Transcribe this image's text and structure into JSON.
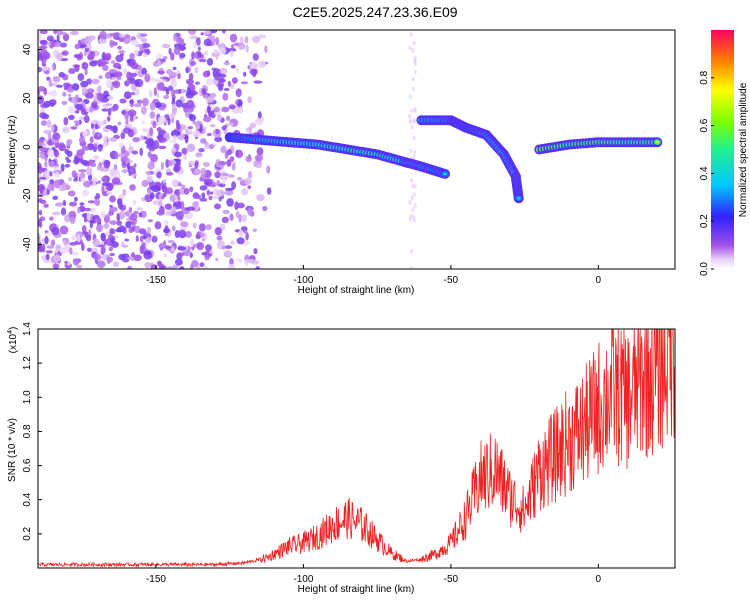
{
  "title": "C2E5.2025.247.23.36.E09",
  "chart_data": [
    {
      "type": "heatmap",
      "xlabel": "Height of straight line (km)",
      "ylabel": "Frequency (Hz)",
      "xlim": [
        -190,
        26
      ],
      "ylim": [
        -50,
        48
      ],
      "xticks": [
        -150,
        -100,
        -50,
        0
      ],
      "yticks": [
        -40,
        -20,
        0,
        20,
        40
      ],
      "colorbar": {
        "label": "Normalized spectral amplitude",
        "range": [
          0,
          1
        ],
        "ticks": [
          0.0,
          0.2,
          0.4,
          0.6,
          0.8
        ],
        "colormap": "rainbow (violet to red, white at zero)"
      },
      "noise_region_x": [
        -190,
        -110
      ],
      "signal_track": [
        {
          "x": -125,
          "y": 4,
          "amp": 0.35
        },
        {
          "x": -115,
          "y": 3,
          "amp": 0.45
        },
        {
          "x": -105,
          "y": 2,
          "amp": 0.5
        },
        {
          "x": -95,
          "y": 1,
          "amp": 0.55
        },
        {
          "x": -85,
          "y": -1,
          "amp": 0.6
        },
        {
          "x": -75,
          "y": -3,
          "amp": 0.6
        },
        {
          "x": -66,
          "y": -6,
          "amp": 0.55
        },
        {
          "x": -60,
          "y": -8,
          "amp": 0.45
        },
        {
          "x": -52,
          "y": -11,
          "amp": 0.4
        },
        {
          "x": -60,
          "y": 11,
          "amp": 0.45
        },
        {
          "x": -50,
          "y": 11,
          "amp": 0.4
        },
        {
          "x": -45,
          "y": 8,
          "amp": 0.35
        },
        {
          "x": -38,
          "y": 5,
          "amp": 0.45
        },
        {
          "x": -32,
          "y": -3,
          "amp": 0.5
        },
        {
          "x": -28,
          "y": -12,
          "amp": 0.55
        },
        {
          "x": -27,
          "y": -21,
          "amp": 0.4
        },
        {
          "x": -20,
          "y": -1,
          "amp": 0.8
        },
        {
          "x": -10,
          "y": 1,
          "amp": 0.7
        },
        {
          "x": 0,
          "y": 2,
          "amp": 0.75
        },
        {
          "x": 10,
          "y": 2,
          "amp": 0.65
        },
        {
          "x": 20,
          "y": 2,
          "amp": 0.7
        }
      ]
    },
    {
      "type": "line",
      "xlabel": "Height of straight line (km)",
      "ylabel": "SNR (10 * v/v)",
      "yscale_label": "(x10",
      "yscale_exp": "4",
      "yscale_close": ")",
      "xlim": [
        -190,
        26
      ],
      "ylim": [
        0,
        1.4
      ],
      "xticks": [
        -150,
        -100,
        -50,
        0
      ],
      "yticks": [
        0.2,
        0.4,
        0.6,
        0.8,
        1.0,
        1.2,
        1.4
      ],
      "series": [
        {
          "color": "#ee2222",
          "x": [
            -190,
            -170,
            -150,
            -130,
            -120,
            -112,
            -105,
            -100,
            -95,
            -90,
            -85,
            -80,
            -75,
            -70,
            -65,
            -60,
            -55,
            -50,
            -45,
            -40,
            -35,
            -30,
            -25,
            -20,
            -15,
            -10,
            -5,
            0,
            5,
            10,
            15,
            20,
            26
          ],
          "y": [
            0.02,
            0.02,
            0.02,
            0.02,
            0.03,
            0.06,
            0.12,
            0.14,
            0.18,
            0.24,
            0.28,
            0.24,
            0.16,
            0.08,
            0.04,
            0.05,
            0.08,
            0.14,
            0.28,
            0.5,
            0.55,
            0.4,
            0.32,
            0.55,
            0.62,
            0.72,
            0.78,
            0.9,
            1.0,
            0.95,
            1.05,
            1.1,
            1.25
          ]
        }
      ]
    }
  ]
}
